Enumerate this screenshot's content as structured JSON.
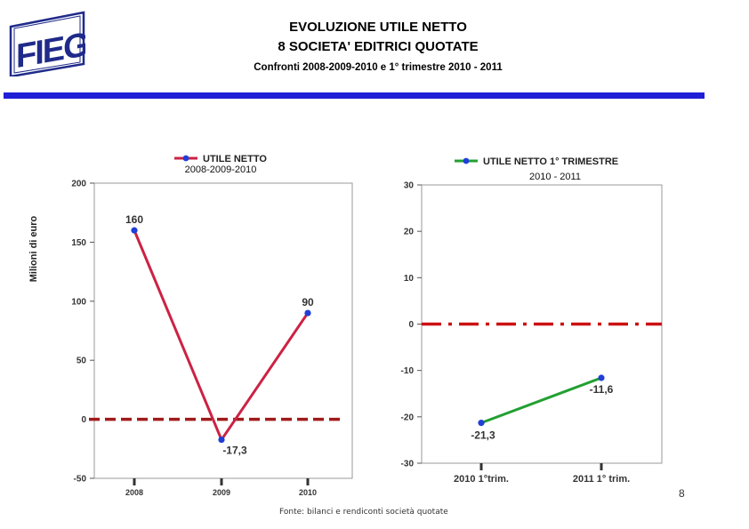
{
  "header": {
    "title_line1": "EVOLUZIONE UTILE NETTO",
    "title_line2": "8 SOCIETA' EDITRICI QUOTATE",
    "subtitle": "Confronti 2008-2009-2010 e 1° trimestre 2010 - 2011",
    "logo_text": "FIEG",
    "band_color": "#1f1fd6"
  },
  "chart_data": [
    {
      "type": "line",
      "legend": "UTILE NETTO",
      "legend_sub": "2008-2009-2010",
      "ylabel": "Milioni di euro",
      "categories": [
        "2008",
        "2009",
        "2010"
      ],
      "series": [
        {
          "name": "UTILE NETTO",
          "values": [
            160,
            -17.3,
            90
          ],
          "color": "#cc2244"
        }
      ],
      "data_labels": [
        "160",
        "-17,3",
        "90"
      ],
      "ylim": [
        -50,
        200
      ],
      "yticks": [
        -50,
        0,
        50,
        100,
        150,
        200
      ],
      "zero_line_color": "#a01a1a",
      "legend_position": "top"
    },
    {
      "type": "line",
      "legend": "UTILE NETTO 1° TRIMESTRE",
      "legend_sub": "2010 - 2011",
      "categories": [
        "2010 1°trim.",
        "2011 1° trim."
      ],
      "series": [
        {
          "name": "UTILE NETTO 1° TRIMESTRE",
          "values": [
            -21.3,
            -11.6
          ],
          "color": "#22a032"
        }
      ],
      "data_labels": [
        "-21,3",
        "-11,6"
      ],
      "ylim": [
        -30,
        30
      ],
      "yticks": [
        -30,
        -20,
        -10,
        0,
        10,
        20,
        30
      ],
      "zero_line_color": "#cc1111",
      "legend_position": "top"
    }
  ],
  "footer": {
    "source": "Fonte: bilanci e rendiconti società quotate",
    "page_number": "8"
  }
}
